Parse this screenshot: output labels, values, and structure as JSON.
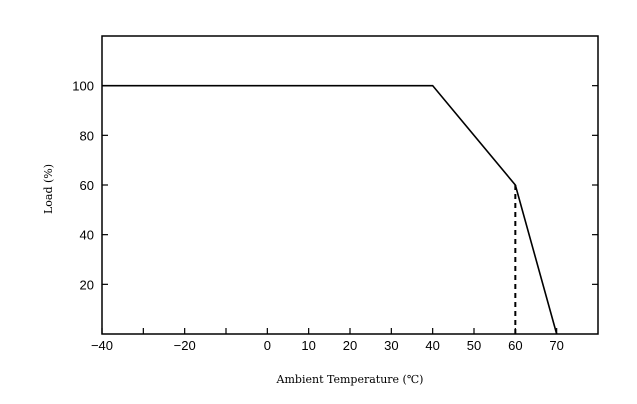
{
  "chart_data": {
    "type": "line",
    "xlabel": "Ambient Temperature (℃)",
    "ylabel": "Load (%)",
    "xlim": [
      -40,
      80
    ],
    "ylim": [
      0,
      120
    ],
    "x_ticks": [
      -40,
      -30,
      -20,
      -10,
      0,
      10,
      20,
      30,
      40,
      50,
      60,
      70
    ],
    "x_tick_labels": [
      "−40",
      "",
      "−20",
      "",
      "0",
      "10",
      "20",
      "30",
      "40",
      "50",
      "60",
      "70"
    ],
    "y_ticks": [
      20,
      40,
      60,
      80,
      100
    ],
    "y_tick_labels": [
      "20",
      "40",
      "60",
      "80",
      "100"
    ],
    "grid": false,
    "series": [
      {
        "x": [
          -40,
          40,
          60,
          70
        ],
        "y": [
          100,
          100,
          60,
          0
        ],
        "style": "solid",
        "color": "#000000"
      }
    ],
    "reference_lines": [
      {
        "x": [
          60,
          60
        ],
        "y": [
          60,
          0
        ],
        "style": "dashed",
        "color": "#000000"
      }
    ]
  }
}
